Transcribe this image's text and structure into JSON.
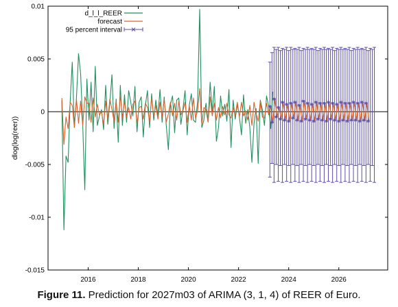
{
  "caption": {
    "label": "Figure 11.",
    "text": "Prediction for 2027m03 of ARIMA (3, 1, 4) of REER of Euro."
  },
  "chart_data": {
    "type": "line",
    "ylabel": "dlog(log(reer))",
    "xlim": [
      2014.4,
      2027.95
    ],
    "ylim": [
      -0.015,
      0.01
    ],
    "xticks": [
      {
        "value": 2016,
        "label": "2016"
      },
      {
        "value": 2018,
        "label": "2018"
      },
      {
        "value": 2020,
        "label": "2020"
      },
      {
        "value": 2022,
        "label": "2022"
      },
      {
        "value": 2024,
        "label": "2024"
      },
      {
        "value": 2026,
        "label": "2026"
      }
    ],
    "yticks": [
      {
        "value": 0.01,
        "label": "0.01"
      },
      {
        "value": 0.005,
        "label": "0.005"
      },
      {
        "value": 0,
        "label": "0"
      },
      {
        "value": -0.005,
        "label": "-0.005"
      },
      {
        "value": -0.01,
        "label": "-0.01"
      },
      {
        "value": -0.015,
        "label": "-0.015"
      }
    ],
    "zero_line": true,
    "legend_position": "top-left",
    "series": [
      {
        "name": "d_l_l_REER",
        "color": "#1f8f5f",
        "start": 2014.95,
        "step": 0.0833333,
        "values": [
          0.0011,
          -0.0112,
          -0.0042,
          -0.0048,
          0.001,
          0.0047,
          -0.0015,
          0.0013,
          0.0055,
          0.0036,
          -0.0012,
          -0.0074,
          0.0031,
          -0.0008,
          0.0028,
          -0.0019,
          0.0043,
          -0.0013,
          -0.0004,
          0.0002,
          -0.0017,
          0.0025,
          -0.0012,
          0.0009,
          0.0035,
          -0.0016,
          0.0012,
          -0.0029,
          0.0025,
          -0.0013,
          0.0016,
          -0.001,
          0.002,
          0.0009,
          -0.0004,
          0.0024,
          -0.0019,
          0.0009,
          0.0014,
          -0.0024,
          0.0006,
          0.002,
          -0.0015,
          0.0017,
          -0.0008,
          0.0011,
          -0.0004,
          0.0021,
          -0.001,
          0.0014,
          -0.0013,
          -0.0036,
          0.0007,
          0.0015,
          -0.002,
          0.0011,
          0.0013,
          -0.0012,
          0.0003,
          0.002,
          -0.0022,
          0.0006,
          0.0017,
          -0.0008,
          -0.001,
          0.001,
          0.0097,
          -0.0015,
          -0.0008,
          0.0008,
          -0.0009,
          0.0028,
          0.0,
          0.0024,
          -0.0028,
          -0.0015,
          0.0015,
          -0.0004,
          0.0007,
          -0.0009,
          0.0021,
          -0.0034,
          0.0011,
          -0.0007,
          0.0007,
          -0.0005,
          -0.0022,
          0.0016,
          -0.0011,
          0.0002,
          -0.0015,
          -0.0048,
          -0.0011,
          0.0003,
          -0.0049,
          0.0011,
          0.0002,
          -0.0013,
          0.0015,
          0.0005,
          -0.0016,
          0.0019
        ],
        "markers": false
      },
      {
        "name": "forecast",
        "color": "#d9622b",
        "start": 2014.95,
        "step": 0.0833333,
        "values": [
          0.0013,
          -0.0031,
          -0.0005,
          -0.0016,
          0.0009,
          0.0006,
          -0.0015,
          0.0012,
          -0.0011,
          0.001,
          -0.0013,
          0.0014,
          0.0008,
          0.0008,
          -0.001,
          0.0013,
          -0.0005,
          0.0007,
          -0.0003,
          0.0,
          -0.0012,
          0.001,
          -0.0007,
          0.0012,
          0.0002,
          -0.0009,
          0.001,
          -0.001,
          0.0016,
          -0.0006,
          0.001,
          -0.0005,
          0.0004,
          -0.0007,
          0.0007,
          0.001,
          -0.0011,
          0.0004,
          0.0005,
          -0.0007,
          0.0008,
          0.0004,
          -0.001,
          0.0013,
          -0.0004,
          0.0006,
          -0.0007,
          0.0009,
          -0.0005,
          0.0012,
          -0.001,
          -0.0002,
          0.0009,
          -0.0004,
          0.0008,
          -0.0008,
          0.001,
          -0.0003,
          0.0001,
          0.0009,
          -0.001,
          0.0006,
          -0.0008,
          0.0013,
          -0.0006,
          0.0001,
          0.0022,
          -0.0012,
          0.0004,
          0.0002,
          -0.001,
          0.0014,
          -0.0004,
          0.0008,
          -0.0008,
          0.0004,
          -0.0006,
          0.0005,
          -0.0003,
          0.0008,
          -0.0003,
          -0.0006,
          0.0004,
          -0.0004,
          0.0009,
          -0.0005,
          0.0009,
          -0.0004,
          0.0001,
          -0.0008,
          0.0006,
          -0.0013,
          0.0009,
          -0.0002,
          -0.0009,
          0.001,
          -0.0005,
          -0.0006,
          0.0008,
          -0.0003,
          0.0005,
          -0.001,
          0.0012,
          -0.0005,
          0.0004,
          -0.0007,
          0.0009,
          -0.0008,
          0.0007,
          -0.0009,
          0.0008,
          -0.0006,
          0.0009,
          -0.0008,
          0.0006,
          -0.0009,
          0.001,
          -0.0007,
          0.0008,
          -0.0008,
          0.0007,
          -0.0009,
          0.0009,
          -0.0007,
          0.0008,
          -0.0008,
          0.0008,
          -0.0009,
          0.0009,
          -0.0007,
          0.0008,
          -0.0008,
          0.0007,
          -0.0009,
          0.0009,
          -0.0008,
          0.0008,
          -0.0009,
          0.0008,
          -0.0008,
          0.0009,
          -0.0008,
          0.0008,
          -0.0009,
          0.0009,
          -0.0008,
          0.0008,
          -0.0009
        ],
        "markers": false
      },
      {
        "name": "95 percent interval",
        "color": "#5b4fa8",
        "start": 2023.25,
        "step": 0.0833333,
        "upper": [
          0.0047,
          0.0056,
          0.0061,
          0.0059,
          0.0061,
          0.0058,
          0.006,
          0.0059,
          0.0061,
          0.0058,
          0.0061,
          0.0059,
          0.006,
          0.0059,
          0.0061,
          0.0058,
          0.006,
          0.0059,
          0.0061,
          0.0059,
          0.006,
          0.0059,
          0.0061,
          0.0058,
          0.006,
          0.0059,
          0.0061,
          0.0059,
          0.006,
          0.0059,
          0.0061,
          0.0058,
          0.006,
          0.0059,
          0.0061,
          0.0059,
          0.006,
          0.0059,
          0.0061,
          0.0058,
          0.006,
          0.0059,
          0.0061,
          0.0059,
          0.006,
          0.0059,
          0.0061,
          0.0058,
          0.006,
          0.0059,
          0.0061
        ],
        "lower": [
          -0.0062,
          -0.0049,
          -0.0067,
          -0.005,
          -0.0066,
          -0.0051,
          -0.0067,
          -0.005,
          -0.0066,
          -0.0051,
          -0.0067,
          -0.005,
          -0.0066,
          -0.0051,
          -0.0067,
          -0.005,
          -0.0066,
          -0.0051,
          -0.0067,
          -0.005,
          -0.0066,
          -0.0051,
          -0.0067,
          -0.005,
          -0.0066,
          -0.0051,
          -0.0067,
          -0.005,
          -0.0066,
          -0.0051,
          -0.0067,
          -0.005,
          -0.0066,
          -0.0051,
          -0.0067,
          -0.005,
          -0.0066,
          -0.0051,
          -0.0067,
          -0.005,
          -0.0066,
          -0.0051,
          -0.0067,
          -0.005,
          -0.0066,
          -0.0051,
          -0.0067,
          -0.005,
          -0.0066,
          -0.0051,
          -0.0067
        ],
        "markers": true
      }
    ]
  }
}
